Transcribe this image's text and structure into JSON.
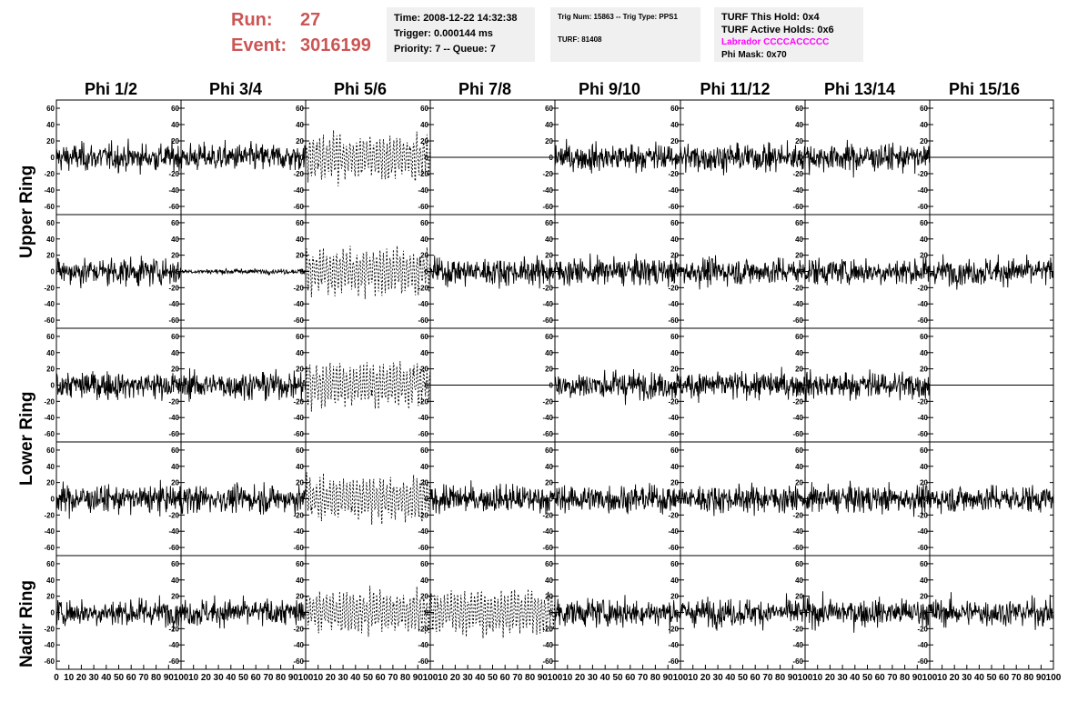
{
  "run": {
    "run_label": "Run:",
    "run_value": "27",
    "event_label": "Event:",
    "event_value": "3016199",
    "color": "#cc5555"
  },
  "time_box": {
    "time": "Time: 2008-12-22 14:32:38",
    "trigger": "Trigger: 0.000144 ms",
    "priority": "Priority: 7 -- Queue: 7"
  },
  "trig_box": {
    "trig": "Trig Num: 15863 -- Trig Type: PPS1",
    "turf": "TURF: 81408"
  },
  "turf_box": {
    "hold": "TURF This Hold: 0x4",
    "active": "TURF Active Holds: 0x6",
    "labrador": "Labrador CCCCACCCCC",
    "labrador_color": "#ff00ff",
    "phi_mask": "Phi Mask: 0x70"
  },
  "columns": [
    "Phi 1/2",
    "Phi 3/4",
    "Phi 5/6",
    "Phi 7/8",
    "Phi 9/10",
    "Phi 11/12",
    "Phi 13/14",
    "Phi 15/16"
  ],
  "rows": {
    "upper": "Upper Ring",
    "lower": "Lower Ring",
    "nadir": "Nadir Ring"
  },
  "chart_data": {
    "type": "line",
    "ylim": [
      -70,
      70
    ],
    "xlim": [
      0,
      100
    ],
    "y_ticks": [
      "60",
      "40",
      "20",
      "0",
      "-20",
      "-40",
      "-60"
    ],
    "x_ticks": [
      "0",
      "10",
      "20",
      "30",
      "40",
      "50",
      "60",
      "70",
      "80",
      "90",
      "100"
    ],
    "panel_styles": [
      [
        "noise",
        "noise",
        "dashed",
        "flat",
        "noise",
        "noise",
        "noise",
        "flat"
      ],
      [
        "noise",
        "quiet",
        "dashed",
        "noise",
        "noise",
        "noise",
        "noise",
        "noise"
      ],
      [
        "noise",
        "noise",
        "dashed",
        "flat",
        "noise",
        "noise",
        "noise",
        "flat"
      ],
      [
        "noise",
        "noise",
        "dashed",
        "noise",
        "noise",
        "noise",
        "noise",
        "noise"
      ],
      [
        "noise",
        "noise",
        "dashed",
        "dashed",
        "noise",
        "noise",
        "noise",
        "noise"
      ]
    ]
  }
}
